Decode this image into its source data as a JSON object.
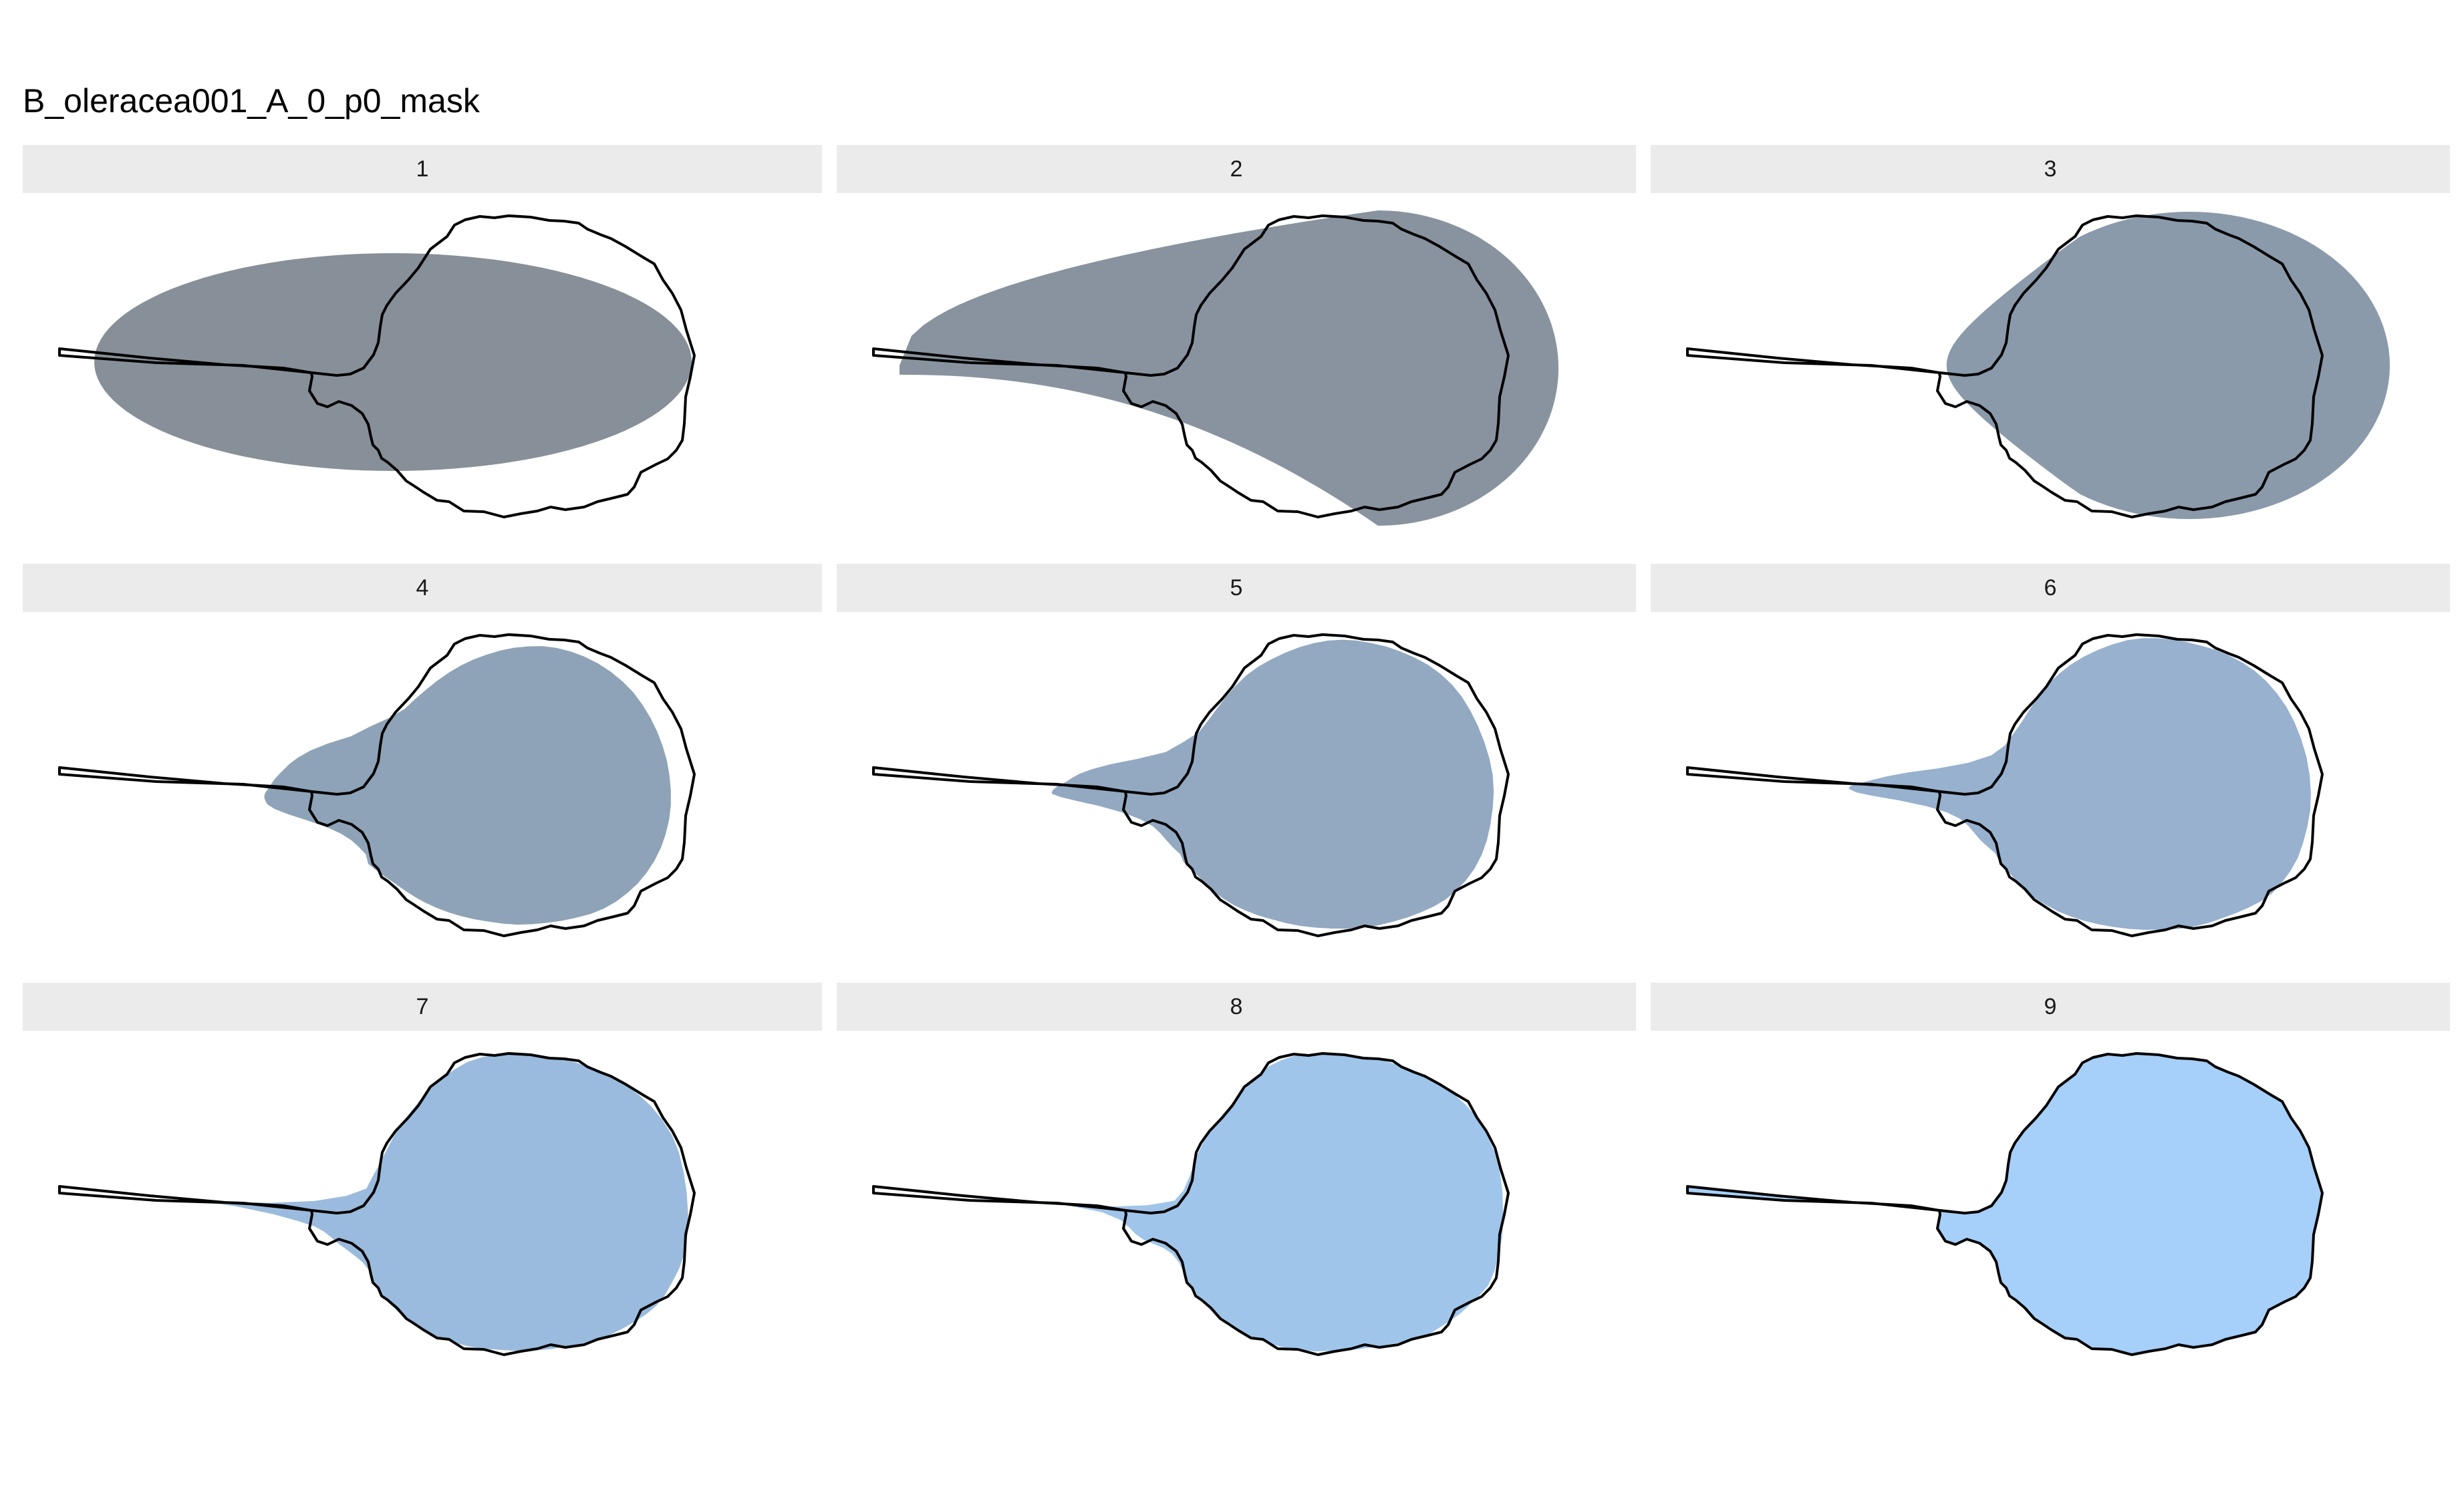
{
  "title": "B_oleracea001_A_0_p0_mask",
  "panels": [
    {
      "label": "1",
      "harmonics": 1,
      "fill": "#878f98"
    },
    {
      "label": "2",
      "harmonics": 2,
      "fill": "#88939f"
    },
    {
      "label": "3",
      "harmonics": 3,
      "fill": "#8a9aab"
    },
    {
      "label": "4",
      "harmonics": 4,
      "fill": "#8ea3b7"
    },
    {
      "label": "5",
      "harmonics": 5,
      "fill": "#93a9c2"
    },
    {
      "label": "6",
      "harmonics": 6,
      "fill": "#97b1cf"
    },
    {
      "label": "7",
      "harmonics": 7,
      "fill": "#9abbdd"
    },
    {
      "label": "8",
      "harmonics": 8,
      "fill": "#a0c5ea"
    },
    {
      "label": "9",
      "harmonics": 9,
      "fill": "#a6cff9"
    }
  ],
  "outline": {
    "stroke": "#000000",
    "description_fill": "none"
  }
}
